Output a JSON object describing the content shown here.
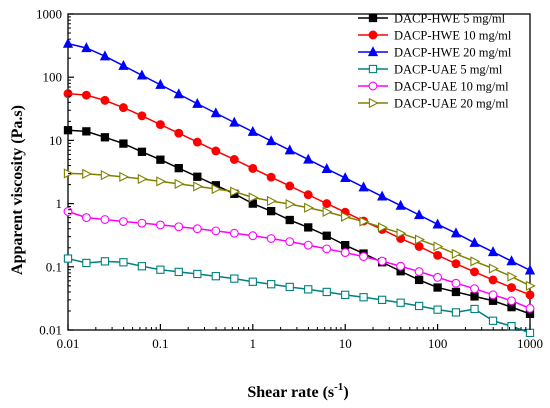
{
  "chart_data": {
    "type": "line",
    "xscale": "log",
    "yscale": "log",
    "xlim": [
      0.01,
      1000
    ],
    "ylim": [
      0.01,
      1000
    ],
    "xlabel": "Shear rate (s",
    "xlabel_sup": "-1",
    "xlabel_end": ")",
    "ylabel": "Apparent viscosity (Pa.s)",
    "x_ticks": [
      0.01,
      0.1,
      1,
      10,
      100,
      1000
    ],
    "x_tick_labels": [
      "0.01",
      "0.1",
      "1",
      "10",
      "100",
      "1000"
    ],
    "y_ticks": [
      0.01,
      0.1,
      1,
      10,
      100,
      1000
    ],
    "y_tick_labels": [
      "0.01",
      "0.1",
      "1",
      "10",
      "100",
      "1000"
    ],
    "legend_position": "top-right",
    "grid": false,
    "x": [
      0.01,
      0.0158,
      0.0251,
      0.0398,
      0.0631,
      0.1,
      0.158,
      0.251,
      0.398,
      0.631,
      1,
      1.58,
      2.51,
      3.98,
      6.31,
      10,
      15.8,
      25.1,
      39.8,
      63.1,
      100,
      158,
      251,
      398,
      631,
      1000
    ],
    "series": [
      {
        "name": "DACP-HWE 5 mg/ml",
        "color": "#000000",
        "marker": "square-filled",
        "values": [
          14.5,
          13.9,
          11.2,
          8.9,
          6.6,
          4.95,
          3.64,
          2.66,
          1.95,
          1.43,
          1.0,
          0.76,
          0.55,
          0.42,
          0.31,
          0.22,
          0.162,
          0.118,
          0.085,
          0.062,
          0.047,
          0.04,
          0.034,
          0.029,
          0.023,
          0.018
        ]
      },
      {
        "name": "DACP-HWE 10 mg/ml",
        "color": "#ff0000",
        "marker": "circle-filled",
        "values": [
          55,
          52,
          43,
          33,
          24.5,
          17.8,
          13,
          9.4,
          6.8,
          5.0,
          3.6,
          2.62,
          1.9,
          1.38,
          1.0,
          0.73,
          0.53,
          0.39,
          0.28,
          0.21,
          0.152,
          0.112,
          0.083,
          0.062,
          0.047,
          0.036
        ]
      },
      {
        "name": "DACP-HWE 20 mg/ml",
        "color": "#0000ff",
        "marker": "triangle-filled",
        "values": [
          340,
          290,
          215,
          152,
          107,
          76,
          54,
          38,
          27,
          19.2,
          13.7,
          9.8,
          7.0,
          5.0,
          3.55,
          2.55,
          1.82,
          1.3,
          0.93,
          0.66,
          0.47,
          0.34,
          0.24,
          0.172,
          0.123,
          0.088
        ]
      },
      {
        "name": "DACP-UAE  5 mg/ml",
        "color": "#008080",
        "marker": "square-open",
        "values": [
          0.135,
          0.115,
          0.122,
          0.118,
          0.102,
          0.09,
          0.083,
          0.077,
          0.071,
          0.065,
          0.058,
          0.053,
          0.048,
          0.044,
          0.04,
          0.036,
          0.033,
          0.03,
          0.027,
          0.024,
          0.021,
          0.019,
          0.0215,
          0.014,
          0.0115,
          0.009
        ]
      },
      {
        "name": "DACP-UAE 10 mg/ml",
        "color": "#ff00ff",
        "marker": "circle-open",
        "values": [
          0.75,
          0.6,
          0.56,
          0.52,
          0.49,
          0.46,
          0.43,
          0.4,
          0.37,
          0.34,
          0.31,
          0.28,
          0.25,
          0.22,
          0.192,
          0.168,
          0.145,
          0.123,
          0.102,
          0.084,
          0.068,
          0.055,
          0.045,
          0.036,
          0.029,
          0.022
        ]
      },
      {
        "name": "DACP-UAE 20 mg/ml",
        "color": "#808000",
        "marker": "triangle-right-open",
        "values": [
          3.0,
          2.95,
          2.82,
          2.65,
          2.45,
          2.25,
          2.05,
          1.87,
          1.7,
          1.55,
          1.25,
          1.1,
          0.98,
          0.86,
          0.74,
          0.62,
          0.52,
          0.42,
          0.34,
          0.27,
          0.21,
          0.16,
          0.122,
          0.094,
          0.07,
          0.05
        ]
      }
    ]
  }
}
